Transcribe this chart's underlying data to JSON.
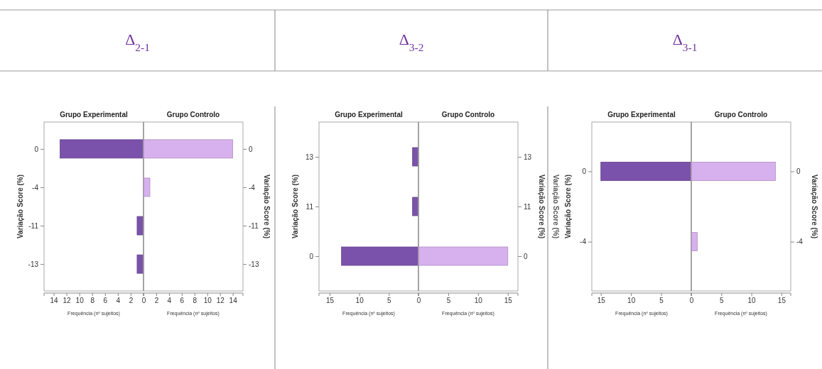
{
  "chart_data": [
    {
      "type": "bar",
      "orientation": "horizontal",
      "title": "Δ$_{2-1}$",
      "subtitle": "Grupo Experimental",
      "xlabel": "Frequência (nº sujeitos)",
      "ylabel": "Variação Score (%)",
      "categories": [
        "0",
        "-4",
        "-11",
        "-13"
      ],
      "values": [
        13,
        null,
        1,
        1
      ],
      "color": "#7b52ab",
      "xlim": [
        15.5,
        0
      ],
      "xticks": [
        14,
        12,
        10,
        8,
        6,
        4,
        2
      ]
    },
    {
      "type": "bar",
      "orientation": "horizontal",
      "subtitle": "Grupo Controlo",
      "xlabel": "Frequência (nº sujeitos)",
      "ylabel": "Variação Score (%)",
      "categories": [
        "0",
        "-4",
        "-11",
        "-13"
      ],
      "values": [
        14,
        1,
        null,
        null
      ],
      "color": "#d7b0ee",
      "xlim": [
        0,
        15.6
      ],
      "xticks": [
        0,
        2,
        4,
        6,
        8,
        10,
        12,
        14
      ]
    },
    {
      "type": "bar",
      "orientation": "horizontal",
      "title": "Δ$_{3-2}$",
      "subtitle": "Grupo Experimental",
      "xlabel": "Frequência (nº sujeitos)",
      "ylabel": "Variação Score (%)",
      "categories": [
        "13",
        "11",
        "0"
      ],
      "values": [
        1,
        1,
        13
      ],
      "color": "#7b52ab",
      "xlim": [
        16.8,
        0
      ],
      "xticks": [
        15,
        10,
        5
      ]
    },
    {
      "type": "bar",
      "orientation": "horizontal",
      "subtitle": "Grupo Controlo",
      "xlabel": "Frequência (nº sujeitos)",
      "ylabel": "Variação Score (%)",
      "categories": [
        "13",
        "11",
        "0"
      ],
      "values": [
        null,
        null,
        15
      ],
      "color": "#d7b0ee",
      "xlim": [
        0,
        16.7
      ],
      "xticks": [
        0,
        5,
        10,
        15
      ]
    },
    {
      "type": "bar",
      "orientation": "horizontal",
      "title": "Δ$_{3-1}$",
      "subtitle": "Grupo Experimental",
      "xlabel": "Frequência (nº sujeitos)",
      "ylabel": "Variação Score (%)",
      "annotations": [
        "Variação Score (%)"
      ],
      "categories": [
        "0",
        "-4"
      ],
      "values": [
        15,
        null
      ],
      "color": "#7b52ab",
      "xlim": [
        16.5,
        0
      ],
      "xticks": [
        15,
        10,
        5
      ]
    },
    {
      "type": "bar",
      "orientation": "horizontal",
      "subtitle": "Grupo Controlo",
      "xlabel": "Frequência (nº sujeitos)",
      "ylabel": "Variação Score (%)",
      "categories": [
        "0",
        "-4"
      ],
      "values": [
        14,
        1
      ],
      "color": "#d7b0ee",
      "xlim": [
        0,
        16.55
      ],
      "xticks": [
        0,
        5,
        10,
        15
      ]
    }
  ]
}
